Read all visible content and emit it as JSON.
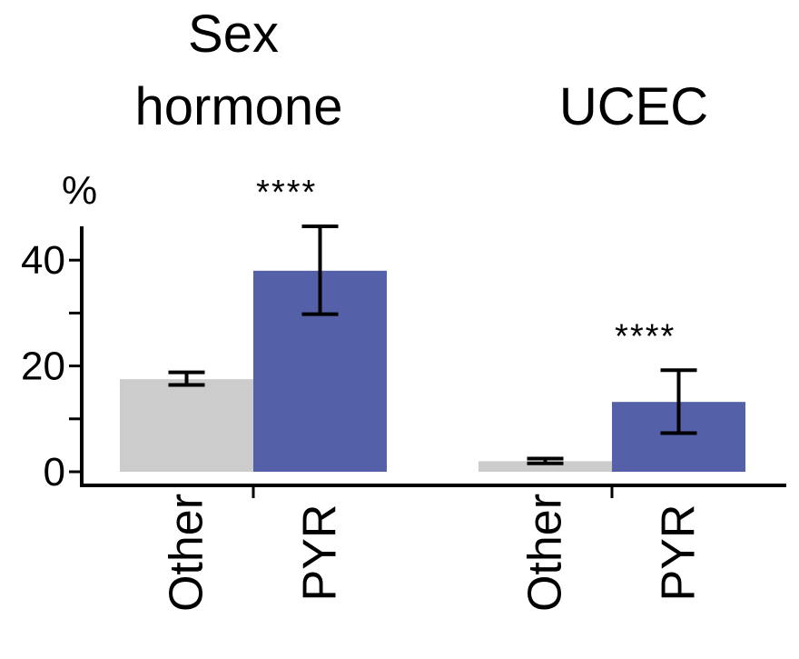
{
  "chart_data": {
    "type": "bar",
    "title": "",
    "ylabel": "%",
    "ylim": [
      0,
      47
    ],
    "yticks": [
      0,
      20,
      40
    ],
    "yticks_minor": [
      10,
      30
    ],
    "groups": [
      {
        "title_lines": [
          "Sex",
          "hormone"
        ],
        "categories": [
          "Other",
          "PYR"
        ],
        "values": [
          17.5,
          38
        ],
        "err_low": [
          16.4,
          29.8
        ],
        "err_high": [
          18.8,
          46.4
        ],
        "significance": "****"
      },
      {
        "title_lines": [
          "UCEC"
        ],
        "categories": [
          "Other",
          "PYR"
        ],
        "values": [
          2,
          13.2
        ],
        "err_low": [
          1.6,
          7.3
        ],
        "err_high": [
          2.5,
          19.2
        ],
        "significance": "****"
      }
    ],
    "colors": {
      "other": "#cccccc",
      "pyr": "#5461a8"
    },
    "grid": false,
    "legend": "none"
  }
}
